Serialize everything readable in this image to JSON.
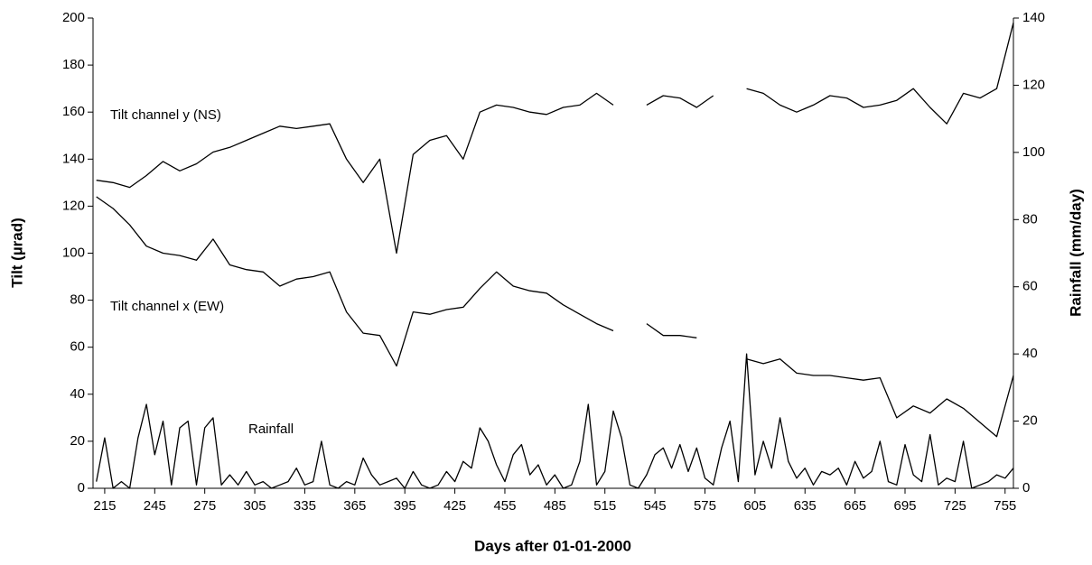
{
  "chart_data": {
    "type": "line",
    "x_label": "Days after 01-01-2000",
    "y_label": "Tilt (µrad)",
    "y2_label": "Rainfall (mm/day)",
    "annotations": [
      "Tilt channel y (NS)",
      "Tilt channel x (EW)",
      "Rainfall"
    ],
    "xlim": [
      208,
      760
    ],
    "xticks": [
      215,
      245,
      275,
      305,
      335,
      365,
      395,
      425,
      455,
      485,
      515,
      545,
      575,
      605,
      635,
      665,
      695,
      725,
      755
    ],
    "ylim": [
      0,
      200
    ],
    "yticks": [
      0,
      20,
      40,
      60,
      80,
      100,
      120,
      140,
      160,
      180,
      200
    ],
    "y2lim": [
      0,
      140
    ],
    "y2ticks": [
      0,
      20,
      40,
      60,
      80,
      100,
      120,
      140
    ],
    "series": [
      {
        "name": "Tilt channel y (NS)",
        "color": "#000000",
        "axis": "y",
        "x": [
          210,
          220,
          230,
          240,
          250,
          260,
          270,
          280,
          290,
          300,
          310,
          320,
          330,
          340,
          350,
          360,
          370,
          380,
          390,
          400,
          410,
          420,
          430,
          440,
          450,
          460,
          470,
          480,
          490,
          500,
          510,
          520,
          530,
          540,
          550,
          560,
          570,
          580,
          590,
          600,
          610,
          620,
          630,
          640,
          650,
          660,
          670,
          680,
          690,
          700,
          710,
          720,
          730,
          740,
          750,
          760
        ],
        "values": [
          131,
          130,
          128,
          133,
          139,
          135,
          138,
          143,
          145,
          148,
          151,
          154,
          153,
          154,
          155,
          140,
          130,
          140,
          100,
          142,
          148,
          150,
          140,
          160,
          163,
          162,
          160,
          159,
          162,
          163,
          168,
          163,
          null,
          163,
          167,
          166,
          162,
          167,
          null,
          170,
          168,
          163,
          160,
          163,
          167,
          166,
          162,
          163,
          165,
          170,
          162,
          155,
          168,
          166,
          170,
          198
        ]
      },
      {
        "name": "Tilt channel x (EW)",
        "color": "#000000",
        "axis": "y",
        "x": [
          210,
          220,
          230,
          240,
          250,
          260,
          270,
          280,
          290,
          300,
          310,
          320,
          330,
          340,
          350,
          360,
          370,
          380,
          390,
          400,
          410,
          420,
          430,
          440,
          450,
          460,
          470,
          480,
          490,
          500,
          510,
          520,
          530,
          540,
          550,
          560,
          570,
          580,
          590,
          600,
          610,
          620,
          630,
          640,
          650,
          660,
          670,
          680,
          690,
          700,
          710,
          720,
          730,
          740,
          750,
          760
        ],
        "values": [
          124,
          119,
          112,
          103,
          100,
          99,
          97,
          106,
          95,
          93,
          92,
          86,
          89,
          90,
          92,
          75,
          66,
          65,
          52,
          75,
          74,
          76,
          77,
          85,
          92,
          86,
          84,
          83,
          78,
          74,
          70,
          67,
          null,
          70,
          65,
          65,
          64,
          null,
          null,
          55,
          53,
          55,
          49,
          48,
          48,
          47,
          46,
          47,
          30,
          35,
          32,
          38,
          34,
          28,
          22,
          48
        ]
      },
      {
        "name": "Rainfall",
        "color": "#000000",
        "axis": "y2",
        "x": [
          210,
          215,
          220,
          225,
          230,
          235,
          240,
          245,
          250,
          255,
          260,
          265,
          270,
          275,
          280,
          285,
          290,
          295,
          300,
          305,
          310,
          315,
          320,
          325,
          330,
          335,
          340,
          345,
          350,
          355,
          360,
          365,
          370,
          375,
          380,
          385,
          390,
          395,
          400,
          405,
          410,
          415,
          420,
          425,
          430,
          435,
          440,
          445,
          450,
          455,
          460,
          465,
          470,
          475,
          480,
          485,
          490,
          495,
          500,
          505,
          510,
          515,
          520,
          525,
          530,
          535,
          540,
          545,
          550,
          555,
          560,
          565,
          570,
          575,
          580,
          585,
          590,
          595,
          600,
          605,
          610,
          615,
          620,
          625,
          630,
          635,
          640,
          645,
          650,
          655,
          660,
          665,
          670,
          675,
          680,
          685,
          690,
          695,
          700,
          705,
          710,
          715,
          720,
          725,
          730,
          735,
          740,
          745,
          750,
          755,
          760
        ],
        "values": [
          2,
          15,
          0,
          2,
          0,
          15,
          25,
          10,
          20,
          1,
          18,
          20,
          1,
          18,
          21,
          1,
          4,
          1,
          5,
          1,
          2,
          0,
          1,
          2,
          6,
          1,
          2,
          14,
          1,
          0,
          2,
          1,
          9,
          4,
          1,
          2,
          3,
          0,
          5,
          1,
          0,
          1,
          5,
          2,
          8,
          6,
          18,
          14,
          7,
          2,
          10,
          13,
          4,
          7,
          1,
          4,
          0,
          1,
          8,
          25,
          1,
          5,
          23,
          15,
          1,
          0,
          4,
          10,
          12,
          6,
          13,
          5,
          12,
          3,
          1,
          12,
          20,
          2,
          40,
          4,
          14,
          6,
          21,
          8,
          3,
          6,
          1,
          5,
          4,
          6,
          1,
          8,
          3,
          5,
          14,
          2,
          1,
          13,
          4,
          2,
          16,
          1,
          3,
          2,
          14,
          0,
          1,
          2,
          4,
          3,
          6
        ]
      }
    ]
  }
}
